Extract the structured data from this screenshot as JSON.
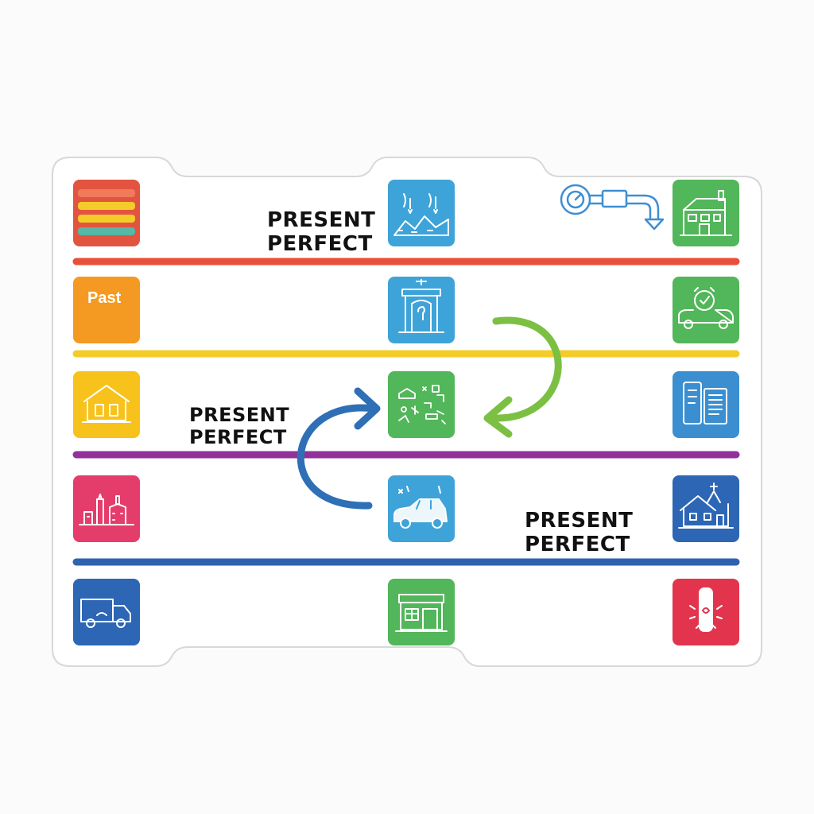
{
  "labels": {
    "top": {
      "line1": "PRESENT",
      "line2": "PERFECT"
    },
    "middle": {
      "line1": "PRESENT",
      "line2": "PERFECT"
    },
    "bottom": {
      "line1": "PRESENT",
      "line2": "PERFECT"
    }
  },
  "past_tile_label": "Past",
  "colors": {
    "red": "#e8503a",
    "yellow": "#f4cc2a",
    "purple": "#92319a",
    "blue": "#2e63b0",
    "green_arrow": "#7cc043",
    "blue_arrow": "#2f6fb5",
    "tile_red": "#e25440",
    "tile_orange": "#f49a22",
    "tile_yellow": "#f6c21b",
    "tile_pink": "#e43d6b",
    "tile_navy": "#2c66b4",
    "tile_sky": "#3ea3d8",
    "tile_green": "#52b65a",
    "tile_crimson": "#e2354d"
  },
  "tiles": [
    {
      "name": "striped-bars-tile",
      "icon": "bars-icon"
    },
    {
      "name": "landscape-tile",
      "icon": "landscape-icon"
    },
    {
      "name": "house-tile",
      "icon": "house-icon"
    },
    {
      "name": "past-tile",
      "icon": "text"
    },
    {
      "name": "doorway-tile",
      "icon": "doorway-icon"
    },
    {
      "name": "alarm-car-tile",
      "icon": "alarm-clock-car-icon"
    },
    {
      "name": "school-tile",
      "icon": "school-building-icon"
    },
    {
      "name": "scattered-items-tile",
      "icon": "scattered-items-icon"
    },
    {
      "name": "documents-tile",
      "icon": "documents-icon"
    },
    {
      "name": "city-tile",
      "icon": "city-buildings-icon"
    },
    {
      "name": "car-tile",
      "icon": "car-icon"
    },
    {
      "name": "church-tile",
      "icon": "church-icon"
    },
    {
      "name": "truck-tile",
      "icon": "truck-icon"
    },
    {
      "name": "shop-tile",
      "icon": "shop-icon"
    },
    {
      "name": "candle-tile",
      "icon": "candle-icon"
    }
  ]
}
